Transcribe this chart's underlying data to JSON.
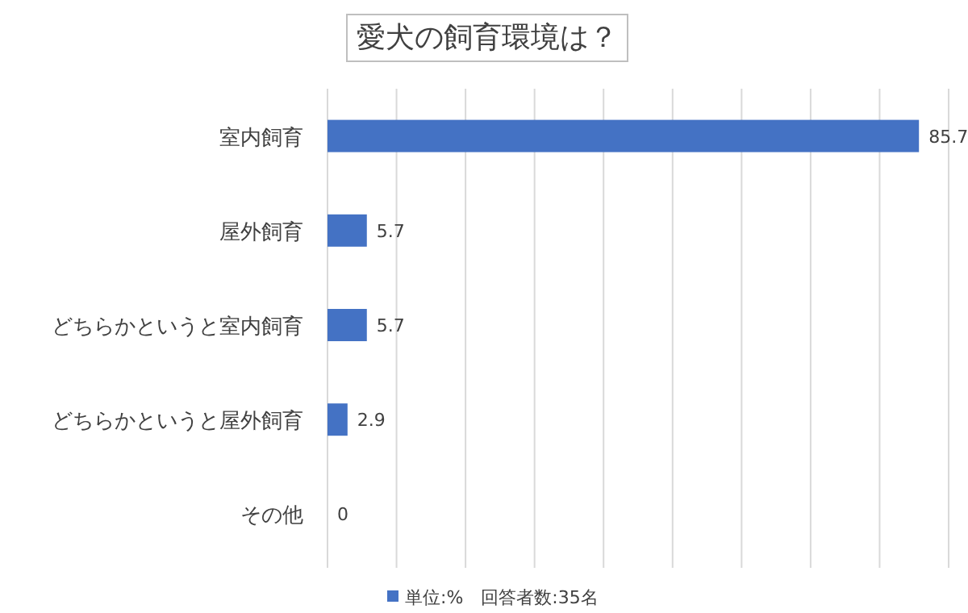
{
  "chart_data": {
    "type": "bar",
    "orientation": "horizontal",
    "title": "愛犬の飼育環境は？",
    "categories": [
      "室内飼育",
      "屋外飼育",
      "どちらかというと室内飼育",
      "どちらかというと屋外飼育",
      "その他"
    ],
    "series": [
      {
        "name": "単位:%　回答者数:35名",
        "color": "#4472c4",
        "values": [
          85.7,
          5.7,
          5.7,
          2.9,
          0
        ]
      }
    ],
    "xlim": [
      0,
      90
    ],
    "xticks": [
      {
        "value": 0,
        "label": null
      },
      {
        "value": 10,
        "label": null
      },
      {
        "value": 20,
        "label": null
      },
      {
        "value": 30,
        "label": null
      },
      {
        "value": 40,
        "label": null
      },
      {
        "value": 50,
        "label": null
      },
      {
        "value": 60,
        "label": null
      },
      {
        "value": 70,
        "label": null
      },
      {
        "value": 80,
        "label": null
      },
      {
        "value": 90,
        "label": null
      }
    ],
    "grid": "x",
    "data_labels": true,
    "legend": "bottom"
  }
}
